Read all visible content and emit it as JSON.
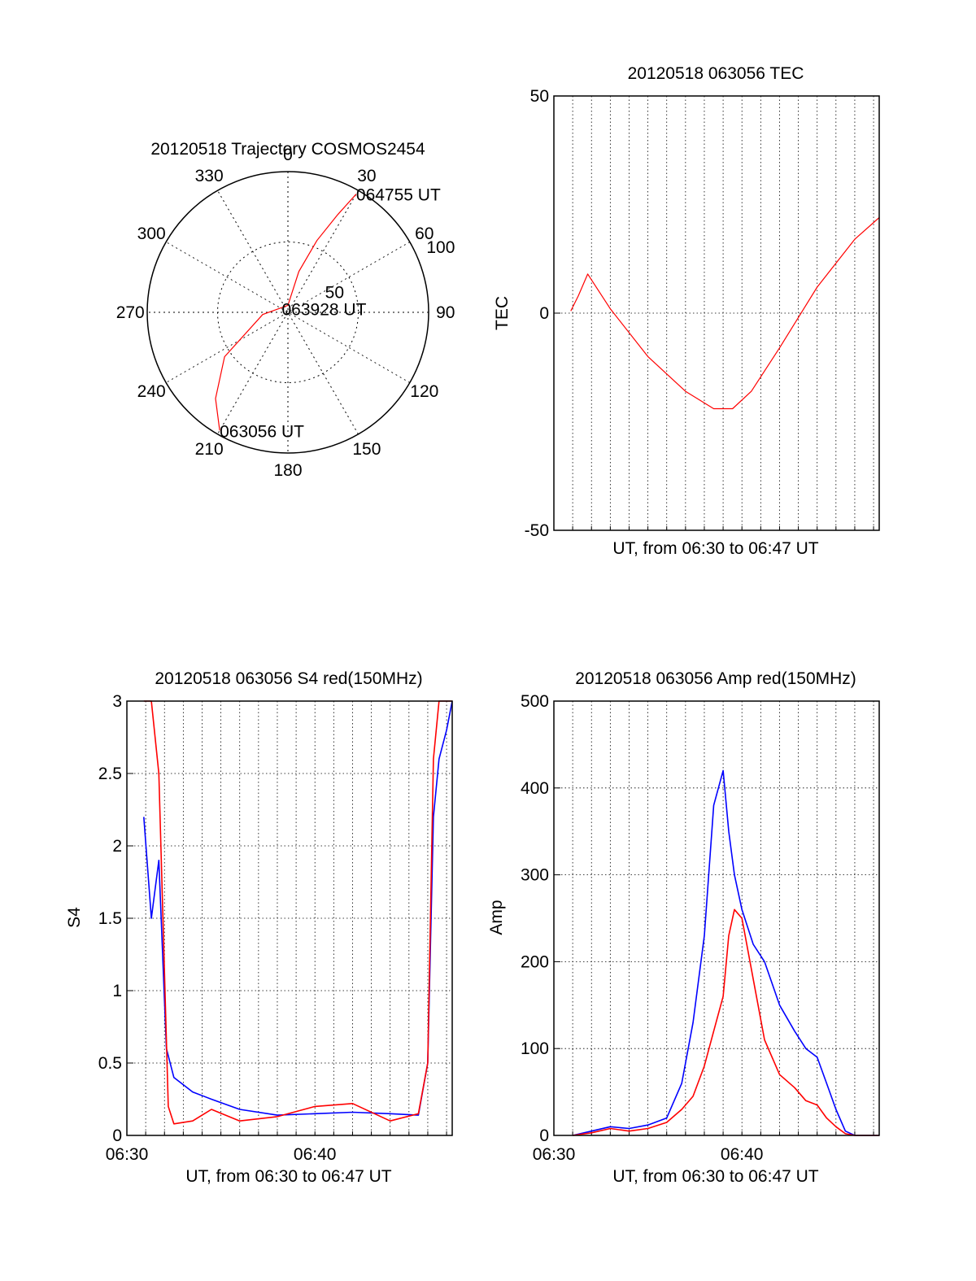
{
  "colors": {
    "red": "#ff0000",
    "blue": "#0000ff",
    "axis": "#000000"
  },
  "chart_data": [
    {
      "type": "polar",
      "title": "20120518 Trajectory COSMOS2454",
      "angle_labels": [
        "0",
        "30",
        "60",
        "90",
        "120",
        "150",
        "180",
        "210",
        "240",
        "270",
        "300",
        "330"
      ],
      "radius_labels": [
        "50",
        "100"
      ],
      "radius_max": 100,
      "grid": true,
      "series": [
        {
          "color": "#ff0000",
          "points": [
            [
              210,
              97
            ],
            [
              220,
              80
            ],
            [
              235,
              55
            ],
            [
              265,
              18
            ],
            [
              0,
              5
            ],
            [
              15,
              30
            ],
            [
              22,
              55
            ],
            [
              27,
              78
            ],
            [
              30,
              97
            ]
          ]
        }
      ],
      "annotations": [
        {
          "text": "064755 UT",
          "angle": 30,
          "r": 97
        },
        {
          "text": "063928 UT",
          "angle": 300,
          "r": 5
        },
        {
          "text": "063056 UT",
          "angle": 210,
          "r": 97
        }
      ]
    },
    {
      "type": "line",
      "title": "20120518 063056 TEC",
      "xlabel": "UT, from 06:30 to 06:47 UT",
      "ylabel": "TEC",
      "ylim": [
        -50,
        50
      ],
      "yticks": [
        "50",
        "0",
        "-50"
      ],
      "xlim": [
        0,
        17.3
      ],
      "grid": true,
      "series": [
        {
          "color": "#ff0000",
          "x": [
            0.9,
            1.3,
            1.8,
            3,
            5,
            7,
            8.5,
            9.5,
            10.5,
            12,
            14,
            16,
            17.3
          ],
          "y": [
            0.5,
            4,
            9,
            1,
            -10,
            -18,
            -22,
            -22,
            -18,
            -8,
            6,
            17,
            22
          ]
        }
      ]
    },
    {
      "type": "line",
      "title": "20120518 063056 S4 red(150MHz)",
      "xlabel": "UT, from 06:30 to 06:47 UT",
      "ylabel": "S4",
      "ylim": [
        0,
        3
      ],
      "yticks": [
        "0",
        "0.5",
        "1",
        "1.5",
        "2",
        "2.5",
        "3"
      ],
      "xticks": [
        "06:30",
        "06:40"
      ],
      "xlim": [
        0,
        17.3
      ],
      "grid": true,
      "series": [
        {
          "color": "#0000ff",
          "x": [
            0.9,
            1.3,
            1.7,
            2.1,
            2.5,
            3.5,
            4.5,
            6,
            8,
            10,
            12,
            14,
            15.5,
            16,
            16.3,
            16.6,
            17.0,
            17.3
          ],
          "y": [
            2.2,
            1.5,
            1.9,
            0.6,
            0.4,
            0.3,
            0.25,
            0.18,
            0.14,
            0.15,
            0.16,
            0.15,
            0.14,
            0.5,
            2.2,
            2.6,
            2.8,
            3.0
          ]
        },
        {
          "color": "#ff0000",
          "x": [
            0.9,
            1.3,
            1.7,
            2.2,
            2.5,
            3.5,
            4.5,
            6,
            8,
            10,
            12,
            14,
            15.5,
            16,
            16.3,
            16.6,
            17.0,
            17.3
          ],
          "y": [
            3.0,
            3.0,
            2.5,
            0.2,
            0.08,
            0.1,
            0.18,
            0.1,
            0.13,
            0.2,
            0.22,
            0.1,
            0.15,
            0.5,
            2.6,
            3.0,
            3.0,
            3.0
          ]
        }
      ]
    },
    {
      "type": "line",
      "title": "20120518 063056 Amp red(150MHz)",
      "xlabel": "UT, from 06:30 to 06:47 UT",
      "ylabel": "Amp",
      "ylim": [
        0,
        500
      ],
      "yticks": [
        "0",
        "100",
        "200",
        "300",
        "400",
        "500"
      ],
      "xticks": [
        "06:30",
        "06:40"
      ],
      "xlim": [
        0,
        17.3
      ],
      "grid": true,
      "series": [
        {
          "color": "#0000ff",
          "x": [
            1,
            2,
            3,
            4,
            5,
            6,
            6.8,
            7.4,
            8,
            8.5,
            9,
            9.3,
            9.6,
            10,
            10.6,
            11.2,
            12,
            12.8,
            13.4,
            14,
            14.5,
            15,
            15.5,
            16,
            17.3
          ],
          "y": [
            0,
            5,
            10,
            8,
            12,
            20,
            60,
            130,
            230,
            380,
            420,
            350,
            300,
            260,
            220,
            200,
            150,
            120,
            100,
            90,
            60,
            30,
            5,
            0,
            0
          ]
        },
        {
          "color": "#ff0000",
          "x": [
            1,
            2,
            3,
            4,
            5,
            6,
            6.8,
            7.4,
            8,
            8.5,
            9,
            9.3,
            9.6,
            10,
            10.6,
            11.2,
            12,
            12.8,
            13.4,
            14,
            14.5,
            15,
            15.5,
            16,
            17.3
          ],
          "y": [
            0,
            3,
            8,
            5,
            8,
            15,
            30,
            45,
            80,
            120,
            160,
            230,
            260,
            250,
            180,
            110,
            70,
            55,
            40,
            35,
            20,
            10,
            2,
            0,
            0
          ]
        }
      ]
    }
  ]
}
